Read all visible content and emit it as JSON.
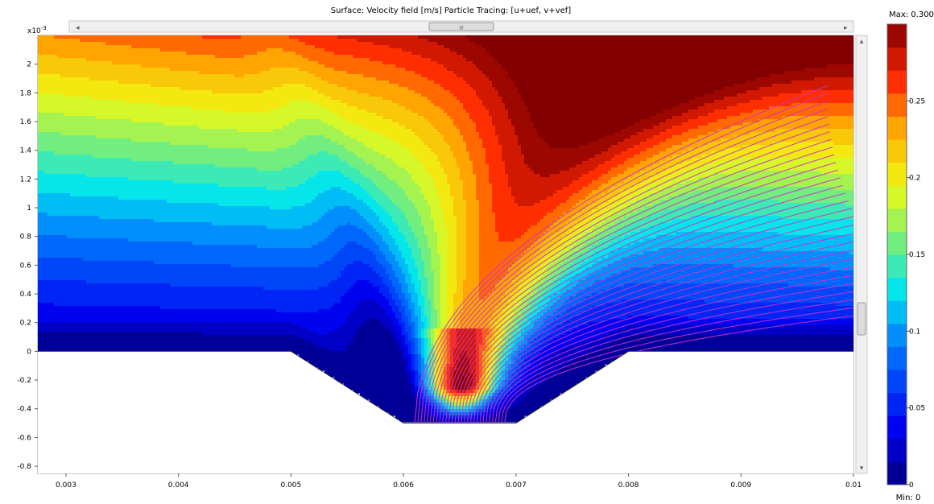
{
  "chart_data": {
    "type": "heatmap",
    "title": "Surface: Velocity field [m/s]   Particle Tracing: [u+uef, v+vef]",
    "x_ticks": [
      "0.003",
      "0.004",
      "0.005",
      "0.006",
      "0.007",
      "0.008",
      "0.009",
      "0.01"
    ],
    "y_ticks": [
      "2",
      "1.8",
      "1.6",
      "1.4",
      "1.2",
      "1",
      "0.8",
      "0.6",
      "0.4",
      "0.2",
      "0",
      "-0.2",
      "-0.4",
      "-0.6",
      "-0.8"
    ],
    "y_multiplier": "x10",
    "y_multiplier_exp": "-3",
    "xlim": [
      0.00275,
      0.01
    ],
    "ylim": [
      -0.00085,
      0.0022
    ],
    "grid": false,
    "geometry": {
      "boundary": [
        [
          0.00275,
          0
        ],
        [
          0.005,
          0
        ],
        [
          0.006,
          -0.0005
        ],
        [
          0.007,
          -0.0005
        ],
        [
          0.008,
          0
        ],
        [
          0.01,
          0
        ]
      ]
    },
    "colorbar": {
      "max_label": "Max: 0.300",
      "min_label": "Min: 0",
      "ticks": [
        "0.25",
        "0.2",
        "0.15",
        "0.1",
        "0.05",
        "0"
      ],
      "tick_values": [
        0.25,
        0.2,
        0.15,
        0.1,
        0.05,
        0
      ],
      "range": [
        0,
        0.3
      ]
    },
    "streamlines": {
      "color": "#cc33cc",
      "count": 30
    }
  },
  "scrollbar": {
    "thumb_label": "III",
    "left_arrow": "◂",
    "right_arrow": "▸",
    "up_arrow": "▴",
    "down_arrow": "▾"
  }
}
